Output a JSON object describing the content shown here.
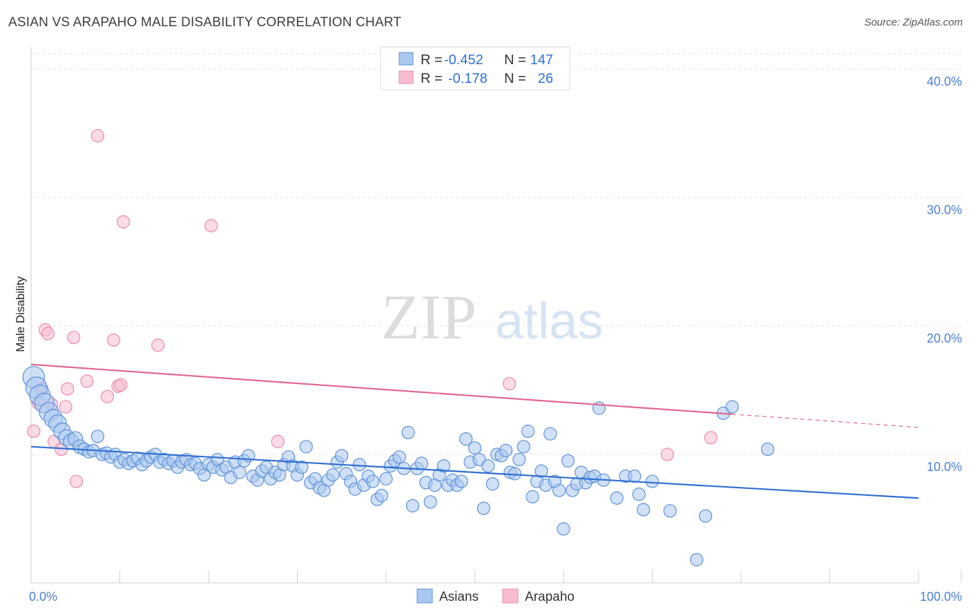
{
  "title": "ASIAN VS ARAPAHO MALE DISABILITY CORRELATION CHART",
  "source": "Source: ZipAtlas.com",
  "watermark": {
    "zip": "ZIP",
    "atlas": "atlas"
  },
  "colors": {
    "asians_fill": "#a9c8f0",
    "asians_stroke": "#5b8fd8",
    "asians_line": "#2f6fd0",
    "arapaho_fill": "#f6bcd0",
    "arapaho_stroke": "#e88aa8",
    "arapaho_line": "#e0668f",
    "tick_label": "#4a7fd4"
  },
  "legend_top": {
    "rows": [
      {
        "r_label": "R =",
        "r_value": "-0.452",
        "n_label": "N =",
        "n_value": "147"
      },
      {
        "r_label": "R =",
        "r_value": "-0.178",
        "n_label": "N =",
        "n_value": "26"
      }
    ]
  },
  "chart_data": {
    "type": "scatter",
    "ylabel": "Male Disability",
    "xlim": [
      0,
      100
    ],
    "ylim": [
      0,
      41.5
    ],
    "x_tick_labels": [
      "0.0%",
      "100.0%"
    ],
    "y_ticks": [
      10,
      20,
      30,
      40
    ],
    "y_tick_labels": [
      "10.0%",
      "20.0%",
      "30.0%",
      "40.0%"
    ],
    "grid": true,
    "legend_placement": "top-center",
    "series": [
      {
        "name": "Asians",
        "points": [
          [
            0.3,
            16.0
          ],
          [
            0.6,
            15.2
          ],
          [
            1.0,
            14.6
          ],
          [
            1.5,
            14.0
          ],
          [
            2.0,
            13.3
          ],
          [
            2.5,
            12.8
          ],
          [
            3.0,
            12.4
          ],
          [
            3.5,
            11.8
          ],
          [
            4.0,
            11.3
          ],
          [
            4.5,
            11.0
          ],
          [
            5.0,
            11.2
          ],
          [
            5.5,
            10.6
          ],
          [
            6.0,
            10.4
          ],
          [
            6.5,
            10.2
          ],
          [
            7.0,
            10.3
          ],
          [
            7.5,
            11.4
          ],
          [
            8.0,
            10.0
          ],
          [
            8.5,
            10.1
          ],
          [
            9.0,
            9.8
          ],
          [
            9.5,
            10.0
          ],
          [
            10.0,
            9.4
          ],
          [
            10.5,
            9.6
          ],
          [
            11.0,
            9.3
          ],
          [
            11.5,
            9.5
          ],
          [
            12.0,
            9.7
          ],
          [
            12.5,
            9.2
          ],
          [
            13.0,
            9.5
          ],
          [
            13.5,
            9.8
          ],
          [
            14.0,
            10.0
          ],
          [
            14.5,
            9.4
          ],
          [
            15.0,
            9.6
          ],
          [
            15.5,
            9.3
          ],
          [
            16.0,
            9.5
          ],
          [
            16.5,
            9.0
          ],
          [
            17.0,
            9.4
          ],
          [
            17.5,
            9.6
          ],
          [
            18.0,
            9.2
          ],
          [
            18.5,
            9.3
          ],
          [
            19.0,
            8.9
          ],
          [
            19.5,
            8.4
          ],
          [
            20.0,
            9.2
          ],
          [
            20.5,
            9.0
          ],
          [
            21.0,
            9.6
          ],
          [
            21.5,
            8.8
          ],
          [
            22.0,
            9.0
          ],
          [
            22.5,
            8.2
          ],
          [
            23.0,
            9.4
          ],
          [
            23.5,
            8.6
          ],
          [
            24.0,
            9.5
          ],
          [
            24.5,
            9.9
          ],
          [
            25.0,
            8.3
          ],
          [
            25.5,
            8.0
          ],
          [
            26.0,
            8.7
          ],
          [
            26.5,
            9.0
          ],
          [
            27.0,
            8.1
          ],
          [
            27.5,
            8.6
          ],
          [
            28.0,
            8.4
          ],
          [
            28.5,
            9.2
          ],
          [
            29.0,
            9.8
          ],
          [
            29.5,
            9.1
          ],
          [
            30.0,
            8.4
          ],
          [
            30.5,
            9.0
          ],
          [
            31.0,
            10.6
          ],
          [
            31.5,
            7.8
          ],
          [
            32.0,
            8.1
          ],
          [
            32.5,
            7.4
          ],
          [
            33.0,
            7.2
          ],
          [
            33.5,
            8.0
          ],
          [
            34.0,
            8.4
          ],
          [
            34.5,
            9.4
          ],
          [
            35.0,
            9.9
          ],
          [
            35.5,
            8.5
          ],
          [
            36.0,
            7.9
          ],
          [
            36.5,
            7.3
          ],
          [
            37.0,
            9.2
          ],
          [
            37.5,
            7.6
          ],
          [
            38.0,
            8.3
          ],
          [
            38.5,
            7.9
          ],
          [
            39.0,
            6.5
          ],
          [
            39.5,
            6.8
          ],
          [
            40.0,
            8.1
          ],
          [
            40.5,
            9.1
          ],
          [
            41.0,
            9.5
          ],
          [
            41.5,
            9.8
          ],
          [
            42.0,
            8.9
          ],
          [
            42.5,
            11.7
          ],
          [
            43.0,
            6.0
          ],
          [
            43.5,
            8.9
          ],
          [
            44.0,
            9.3
          ],
          [
            44.5,
            7.8
          ],
          [
            45.0,
            6.3
          ],
          [
            45.5,
            7.6
          ],
          [
            46.0,
            8.4
          ],
          [
            46.5,
            9.1
          ],
          [
            47.0,
            7.6
          ],
          [
            47.5,
            8.0
          ],
          [
            48.0,
            7.6
          ],
          [
            48.5,
            7.9
          ],
          [
            49.0,
            11.2
          ],
          [
            49.5,
            9.4
          ],
          [
            50.0,
            10.5
          ],
          [
            50.5,
            9.6
          ],
          [
            51.0,
            5.8
          ],
          [
            51.5,
            9.1
          ],
          [
            52.0,
            7.7
          ],
          [
            52.5,
            10.0
          ],
          [
            53.0,
            9.9
          ],
          [
            53.5,
            10.3
          ],
          [
            54.0,
            8.6
          ],
          [
            54.5,
            8.5
          ],
          [
            55.0,
            9.6
          ],
          [
            55.5,
            10.6
          ],
          [
            56.0,
            11.8
          ],
          [
            56.5,
            6.7
          ],
          [
            57.0,
            7.9
          ],
          [
            57.5,
            8.7
          ],
          [
            58.0,
            7.6
          ],
          [
            58.5,
            11.6
          ],
          [
            59.0,
            7.9
          ],
          [
            59.5,
            7.2
          ],
          [
            60.0,
            4.2
          ],
          [
            60.5,
            9.5
          ],
          [
            61.0,
            7.2
          ],
          [
            61.5,
            7.7
          ],
          [
            62.0,
            8.6
          ],
          [
            62.5,
            7.8
          ],
          [
            63.0,
            8.2
          ],
          [
            63.5,
            8.3
          ],
          [
            64.0,
            13.6
          ],
          [
            64.5,
            8.0
          ],
          [
            66.0,
            6.6
          ],
          [
            67.0,
            8.3
          ],
          [
            68.0,
            8.3
          ],
          [
            68.5,
            6.9
          ],
          [
            69.0,
            5.7
          ],
          [
            70.0,
            7.9
          ],
          [
            72.0,
            5.6
          ],
          [
            75.0,
            1.8
          ],
          [
            76.0,
            5.2
          ],
          [
            78.0,
            13.2
          ],
          [
            79.0,
            13.7
          ],
          [
            83.0,
            10.4
          ]
        ],
        "trendline": {
          "x": [
            0,
            100
          ],
          "y": [
            10.6,
            6.6
          ]
        }
      },
      {
        "name": "Arapaho",
        "points": [
          [
            0.3,
            11.8
          ],
          [
            0.8,
            14.0
          ],
          [
            1.2,
            15.1
          ],
          [
            1.6,
            19.7
          ],
          [
            1.9,
            19.4
          ],
          [
            2.3,
            13.9
          ],
          [
            2.6,
            11.0
          ],
          [
            3.4,
            10.4
          ],
          [
            3.9,
            13.7
          ],
          [
            4.1,
            15.1
          ],
          [
            4.8,
            19.1
          ],
          [
            5.1,
            7.9
          ],
          [
            6.3,
            15.7
          ],
          [
            7.5,
            34.8
          ],
          [
            8.6,
            14.5
          ],
          [
            9.3,
            18.9
          ],
          [
            9.8,
            15.3
          ],
          [
            10.1,
            15.4
          ],
          [
            10.4,
            28.1
          ],
          [
            14.3,
            18.5
          ],
          [
            20.3,
            27.8
          ],
          [
            27.8,
            11.0
          ],
          [
            53.9,
            15.5
          ],
          [
            71.7,
            10.0
          ],
          [
            76.6,
            11.3
          ]
        ],
        "trendline": {
          "x": [
            0,
            100
          ],
          "y": [
            17.0,
            12.1
          ],
          "solid_until": 79
        }
      }
    ]
  },
  "bottom_legend": [
    {
      "label": "Asians"
    },
    {
      "label": "Arapaho"
    }
  ]
}
